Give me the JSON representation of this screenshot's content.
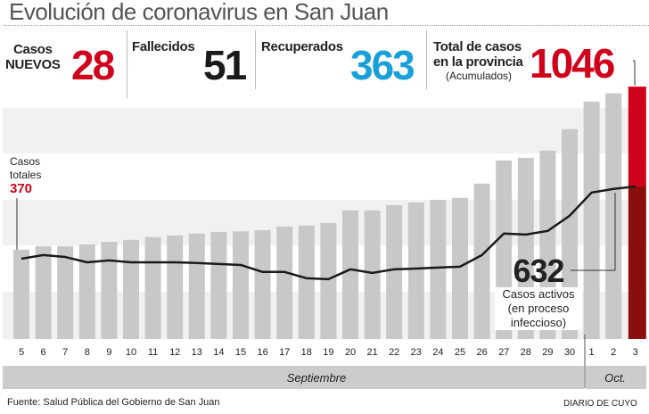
{
  "title": "Evolución de coronavirus en San Juan",
  "stats": {
    "new": {
      "label1": "Casos",
      "label2": "NUEVOS",
      "value": "28",
      "color": "#d0021b"
    },
    "deaths": {
      "label": "Fallecidos",
      "value": "51",
      "color": "#1a1a1a"
    },
    "recovered": {
      "label": "Recuperados",
      "value": "363",
      "color": "#1aa0d8"
    },
    "total": {
      "label1": "Total de casos",
      "label2": "en la provincia",
      "note": "(Acumulados)",
      "value": "1046",
      "color": "#d0021b"
    }
  },
  "chart_data": {
    "type": "bar",
    "categories": [
      "5",
      "6",
      "7",
      "8",
      "9",
      "10",
      "11",
      "12",
      "13",
      "14",
      "15",
      "16",
      "17",
      "18",
      "19",
      "20",
      "21",
      "22",
      "23",
      "24",
      "25",
      "26",
      "27",
      "28",
      "29",
      "30",
      "1",
      "2",
      "3"
    ],
    "series": [
      {
        "name": "Casos totales",
        "values": [
          370,
          385,
          385,
          392,
          403,
          411,
          422,
          429,
          437,
          444,
          446,
          451,
          466,
          470,
          481,
          533,
          533,
          555,
          566,
          577,
          585,
          644,
          740,
          751,
          781,
          870,
          984,
          1018,
          1046
        ]
      },
      {
        "name": "Casos activos",
        "type": "line",
        "values": [
          333,
          348,
          340,
          318,
          326,
          318,
          318,
          318,
          315,
          311,
          307,
          278,
          278,
          252,
          248,
          289,
          274,
          289,
          292,
          296,
          300,
          348,
          437,
          433,
          448,
          511,
          607,
          622,
          632
        ]
      }
    ],
    "months": [
      "Septiembre",
      "Oct."
    ],
    "annotations": {
      "first": {
        "line1": "Casos",
        "line2": "totales",
        "value": "370"
      },
      "active": {
        "value": "632",
        "line1": "Casos activos",
        "line2": "(en proceso",
        "line3": "infeccioso)"
      }
    },
    "ylim": [
      0,
      1100
    ],
    "colors": {
      "bar": "#c8c8c8",
      "last_bar_top": "#d0021b",
      "last_bar_bottom": "#8b0e0e",
      "line": "#1a1a1a",
      "band": "#f1f1f1"
    }
  },
  "footer": {
    "source": "Fuente: Salud Pública del Gobierno de San Juan",
    "brand": "DIARIO DE CUYO"
  }
}
